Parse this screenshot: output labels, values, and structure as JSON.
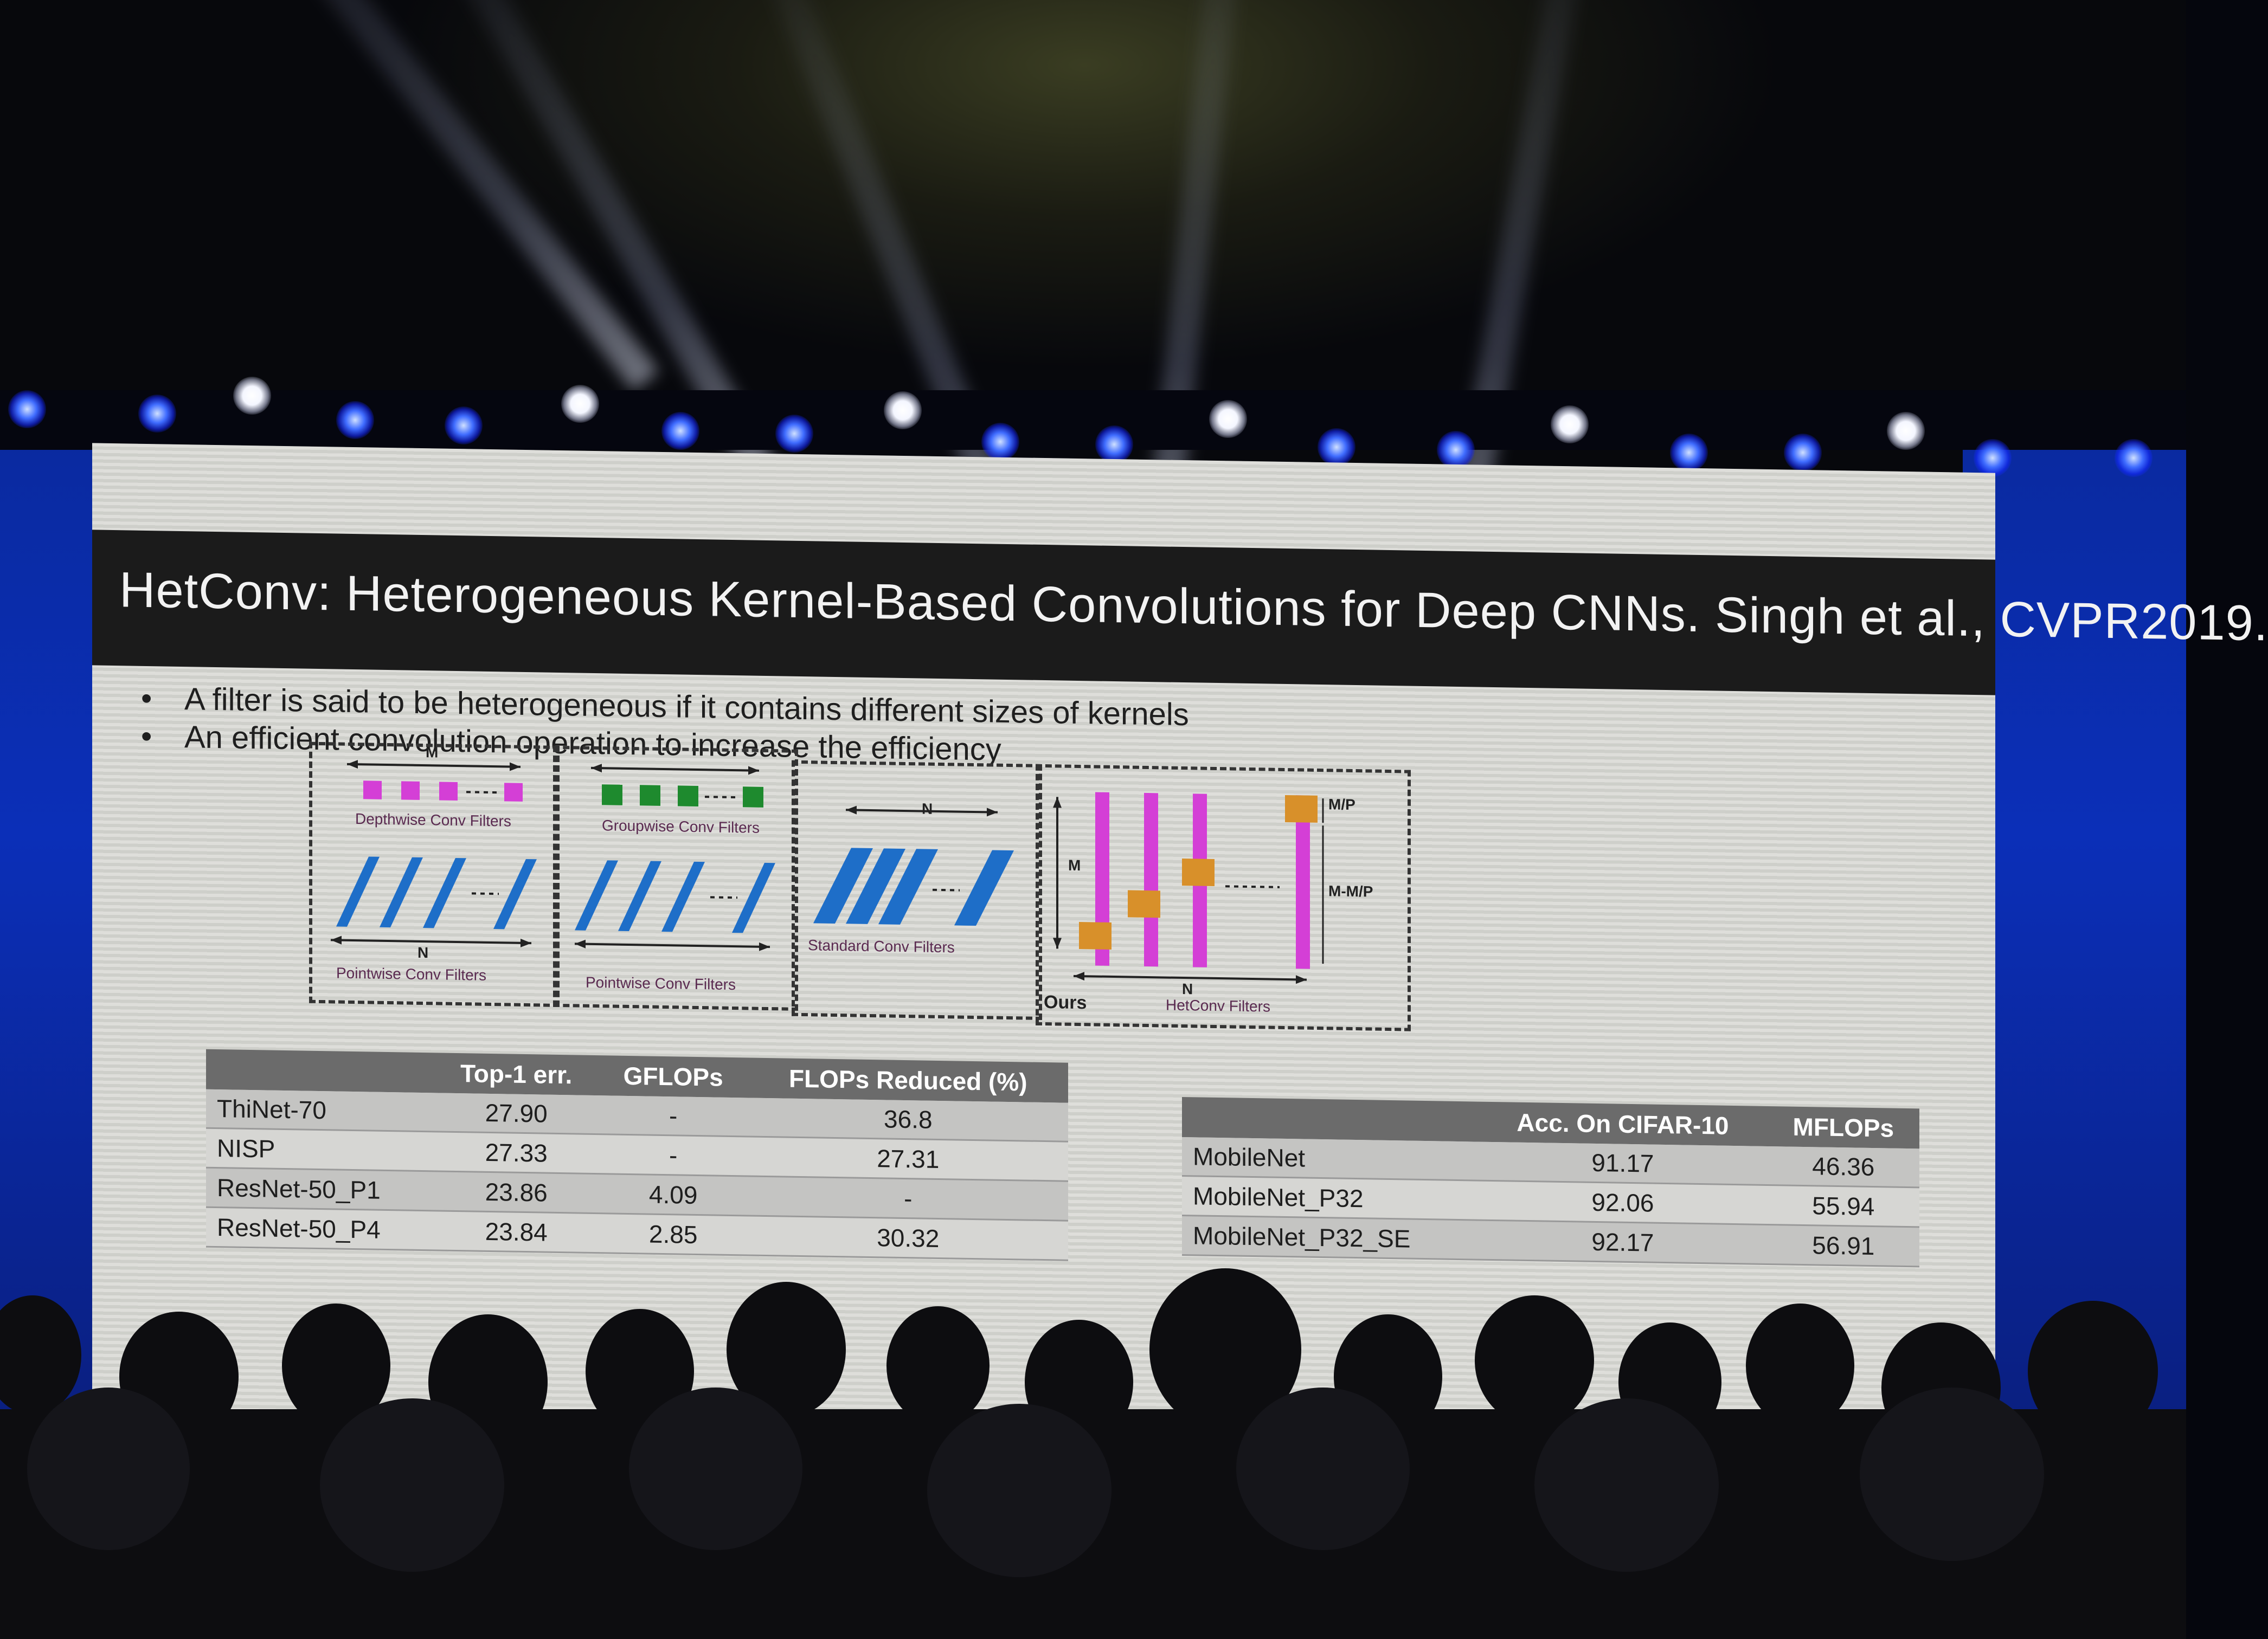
{
  "slide": {
    "title": "HetConv: Heterogeneous Kernel-Based Convolutions for Deep CNNs. Singh et al., CVPR2019.",
    "bullets": [
      "A filter is said to be heterogeneous if it contains different sizes of kernels",
      "An efficient convolution operation to increase the efficiency"
    ],
    "figure": {
      "panels": [
        {
          "caption_top": "Depthwise Conv Filters",
          "caption_bottom": "Pointwise Conv Filters"
        },
        {
          "caption_top": "Groupwise Conv Filters",
          "caption_bottom": "Pointwise Conv Filters"
        },
        {
          "caption_bottom": "Standard Conv Filters"
        },
        {
          "caption_bottom": "HetConv Filters",
          "tag": "Ours"
        }
      ],
      "dims": {
        "m": "M",
        "n": "N",
        "mp": "M/P",
        "m_mp": "M-M/P"
      }
    },
    "table_left": {
      "headers": [
        "",
        "Top-1 err.",
        "GFLOPs",
        "FLOPs Reduced (%)"
      ],
      "rows": [
        [
          "ThiNet-70",
          "27.90",
          "-",
          "36.8"
        ],
        [
          "NISP",
          "27.33",
          "-",
          "27.31"
        ],
        [
          "ResNet-50_P1",
          "23.86",
          "4.09",
          "-"
        ],
        [
          "ResNet-50_P4",
          "23.84",
          "2.85",
          "30.32"
        ]
      ]
    },
    "table_right": {
      "headers": [
        "",
        "Acc. On CIFAR-10",
        "MFLOPs"
      ],
      "rows": [
        [
          "MobileNet",
          "91.17",
          "46.36"
        ],
        [
          "MobileNet_P32",
          "92.06",
          "55.94"
        ],
        [
          "MobileNet_P32_SE",
          "92.17",
          "56.91"
        ]
      ]
    }
  },
  "colors": {
    "stage_blue": "#0b2fb8",
    "title_bar": "#1b1b1b",
    "filter_magenta": "#d43fd6",
    "filter_green": "#1e8a2e",
    "filter_blue": "#1e6ec8",
    "kernel_orange": "#d8902a"
  }
}
